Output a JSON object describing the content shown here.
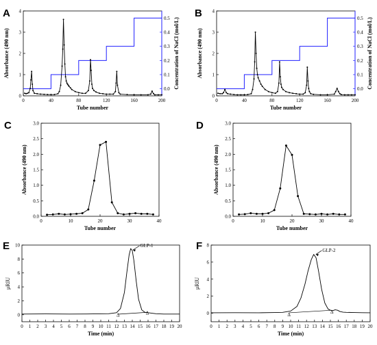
{
  "colors": {
    "series": "#000000",
    "nacl_step": "#1f1fff",
    "right_axis": "#1f1fff"
  },
  "chart_data": [
    {
      "panel": "A",
      "type": "line",
      "xlabel": "Tube number",
      "ylabel": "Absorbance (490 nm)",
      "y2label": "Concentration of NaCl (mol/L)",
      "xlim": [
        0,
        200
      ],
      "ylim": [
        0,
        4
      ],
      "y2lim": [
        -0.05,
        0.55
      ],
      "x_ticks": [
        0,
        40,
        80,
        120,
        160,
        200
      ],
      "y_ticks": [
        0,
        1,
        2,
        3,
        4
      ],
      "y2_ticks": [
        0.0,
        0.1,
        0.2,
        0.3,
        0.4,
        0.5
      ],
      "markers": true,
      "series": [
        {
          "x": [
            2,
            4,
            6,
            8,
            10,
            11,
            12,
            13,
            14,
            16,
            20,
            25,
            30,
            35,
            40,
            45,
            50,
            52,
            54,
            56,
            57,
            58,
            59,
            60,
            61,
            62,
            63,
            64,
            65,
            66,
            68,
            70,
            75,
            80,
            85,
            90,
            94,
            96,
            97,
            98,
            99,
            100,
            102,
            105,
            110,
            115,
            120,
            125,
            130,
            133,
            134,
            135,
            136,
            138,
            140,
            150,
            160,
            170,
            180,
            184,
            186,
            188,
            190,
            195,
            200
          ],
          "y": [
            0.12,
            0.1,
            0.12,
            0.15,
            0.35,
            0.75,
            1.15,
            0.55,
            0.25,
            0.12,
            0.1,
            0.08,
            0.07,
            0.06,
            0.06,
            0.06,
            0.1,
            0.2,
            0.5,
            1.4,
            2.2,
            3.6,
            2.4,
            1.5,
            0.9,
            0.7,
            0.6,
            0.55,
            0.5,
            0.45,
            0.38,
            0.3,
            0.2,
            0.15,
            0.12,
            0.12,
            0.25,
            0.7,
            1.7,
            1.2,
            0.55,
            0.35,
            0.25,
            0.18,
            0.12,
            0.1,
            0.08,
            0.08,
            0.08,
            0.2,
            0.6,
            1.15,
            0.5,
            0.15,
            0.08,
            0.06,
            0.05,
            0.05,
            0.05,
            0.08,
            0.22,
            0.1,
            0.05,
            0.05,
            0.05
          ]
        }
      ],
      "nacl_steps": {
        "x": [
          0,
          40,
          40,
          80,
          80,
          120,
          120,
          160,
          160,
          200
        ],
        "y": [
          0,
          0,
          0.1,
          0.1,
          0.2,
          0.2,
          0.3,
          0.3,
          0.5,
          0.5
        ]
      }
    },
    {
      "panel": "B",
      "type": "line",
      "xlabel": "Tube number",
      "ylabel": "Absorbance (490 nm)",
      "y2label": "Concentration of NaCl (mol/L)",
      "xlim": [
        0,
        200
      ],
      "ylim": [
        0,
        4
      ],
      "y2lim": [
        -0.05,
        0.55
      ],
      "x_ticks": [
        0,
        40,
        80,
        120,
        160,
        200
      ],
      "y_ticks": [
        0,
        1,
        2,
        3,
        4
      ],
      "y2_ticks": [
        0.0,
        0.1,
        0.2,
        0.3,
        0.4,
        0.5
      ],
      "markers": true,
      "series": [
        {
          "x": [
            2,
            5,
            8,
            10,
            12,
            14,
            16,
            20,
            25,
            30,
            35,
            40,
            45,
            50,
            52,
            54,
            55,
            56,
            57,
            58,
            59,
            60,
            62,
            64,
            66,
            70,
            75,
            80,
            85,
            88,
            90,
            91,
            92,
            93,
            94,
            96,
            100,
            105,
            110,
            115,
            120,
            125,
            128,
            130,
            131,
            132,
            133,
            134,
            136,
            140,
            150,
            160,
            170,
            172,
            174,
            176,
            178,
            180,
            185,
            190,
            195,
            200
          ],
          "y": [
            0.12,
            0.1,
            0.1,
            0.15,
            0.3,
            0.15,
            0.1,
            0.08,
            0.06,
            0.05,
            0.05,
            0.05,
            0.06,
            0.1,
            0.3,
            0.8,
            1.6,
            3.0,
            2.0,
            1.3,
            1.0,
            0.85,
            0.7,
            0.55,
            0.45,
            0.3,
            0.2,
            0.15,
            0.12,
            0.2,
            0.6,
            1.6,
            0.9,
            0.55,
            0.4,
            0.3,
            0.2,
            0.15,
            0.12,
            0.1,
            0.08,
            0.08,
            0.15,
            0.5,
            1.35,
            0.7,
            0.35,
            0.2,
            0.1,
            0.07,
            0.05,
            0.05,
            0.08,
            0.2,
            0.35,
            0.2,
            0.1,
            0.06,
            0.05,
            0.05,
            0.05,
            0.05
          ]
        }
      ],
      "nacl_steps": {
        "x": [
          0,
          40,
          40,
          80,
          80,
          120,
          120,
          160,
          160,
          200
        ],
        "y": [
          0,
          0,
          0.1,
          0.1,
          0.2,
          0.2,
          0.3,
          0.3,
          0.5,
          0.5
        ]
      }
    },
    {
      "panel": "C",
      "type": "line",
      "xlabel": "Tube number",
      "ylabel": "Absorbance (490 nm)",
      "xlim": [
        0,
        40
      ],
      "ylim": [
        0,
        3.0
      ],
      "x_ticks": [
        0,
        10,
        20,
        30,
        40
      ],
      "y_ticks": [
        0.0,
        0.5,
        1.0,
        1.5,
        2.0,
        2.5,
        3.0
      ],
      "y_tick_labels": [
        "0.0",
        "0.5",
        "1.0",
        "1.5",
        "2.0",
        "2.5",
        "3.0"
      ],
      "markers": true,
      "series": [
        {
          "x": [
            2,
            4,
            6,
            8,
            10,
            12,
            14,
            16,
            18,
            20,
            22,
            24,
            26,
            28,
            30,
            32,
            34,
            36,
            38
          ],
          "y": [
            0.05,
            0.06,
            0.08,
            0.06,
            0.07,
            0.08,
            0.1,
            0.22,
            1.15,
            2.3,
            2.4,
            0.45,
            0.1,
            0.06,
            0.08,
            0.1,
            0.08,
            0.08,
            0.06
          ]
        }
      ]
    },
    {
      "panel": "D",
      "type": "line",
      "xlabel": "Tube number",
      "ylabel": "Absorbance (490 nm)",
      "xlim": [
        0,
        40
      ],
      "ylim": [
        0,
        3.0
      ],
      "x_ticks": [
        0,
        10,
        20,
        30,
        40
      ],
      "y_ticks": [
        0.0,
        0.5,
        1.0,
        1.5,
        2.0,
        2.5,
        3.0
      ],
      "y_tick_labels": [
        "0.0",
        "0.5",
        "1.0",
        "1.5",
        "2.0",
        "2.5",
        "3.0"
      ],
      "markers": true,
      "series": [
        {
          "x": [
            2,
            4,
            6,
            8,
            10,
            12,
            14,
            16,
            18,
            20,
            22,
            24,
            26,
            28,
            30,
            32,
            34,
            36,
            38
          ],
          "y": [
            0.06,
            0.07,
            0.1,
            0.08,
            0.08,
            0.1,
            0.2,
            0.9,
            2.28,
            1.98,
            0.65,
            0.08,
            0.07,
            0.06,
            0.08,
            0.06,
            0.08,
            0.06,
            0.06
          ]
        }
      ]
    },
    {
      "panel": "E",
      "type": "line",
      "xlabel": "Time (min)",
      "ylabel": "μRIU",
      "xlim": [
        0,
        20
      ],
      "ylim": [
        -1,
        10
      ],
      "x_ticks": [
        0,
        1,
        2,
        3,
        4,
        5,
        6,
        7,
        8,
        9,
        10,
        11,
        12,
        13,
        14,
        15,
        16,
        17,
        18,
        19,
        20
      ],
      "y_ticks": [
        0,
        2,
        4,
        6,
        8,
        10
      ],
      "markers": false,
      "series": [
        {
          "x": [
            0,
            3,
            6,
            9,
            11,
            12,
            12.5,
            13,
            13.3,
            13.6,
            13.8,
            14.0,
            14.2,
            14.5,
            14.8,
            15.2,
            15.6,
            16,
            16.5,
            17,
            18,
            19,
            20
          ],
          "y": [
            0.1,
            0.12,
            0.1,
            0.12,
            0.15,
            0.3,
            0.9,
            3.2,
            6.0,
            8.6,
            9.5,
            9.2,
            7.8,
            4.8,
            2.2,
            0.7,
            0.35,
            0.3,
            0.22,
            0.15,
            0.1,
            0.1,
            0.1
          ]
        }
      ],
      "baseline": {
        "x": [
          12.2,
          15.9
        ],
        "y": [
          0.08,
          0.35
        ]
      },
      "annotations": [
        {
          "text": "GLP-1",
          "x": 15.0,
          "y": 9.7,
          "arrow_to": [
            13.9,
            9.3
          ]
        },
        {
          "text": "Δ",
          "x": 12.2,
          "y": -0.25
        },
        {
          "text": "Δ",
          "x": 15.9,
          "y": 0.05
        }
      ]
    },
    {
      "panel": "F",
      "type": "line",
      "xlabel": "Time (min)",
      "ylabel": "μRIU",
      "xlim": [
        0,
        20
      ],
      "ylim": [
        -1,
        8
      ],
      "x_ticks": [
        0,
        1,
        2,
        3,
        4,
        5,
        6,
        7,
        8,
        9,
        10,
        11,
        12,
        13,
        14,
        15,
        16,
        17,
        18,
        19,
        20
      ],
      "y_ticks": [
        0,
        2,
        4,
        6,
        8
      ],
      "markers": false,
      "series": [
        {
          "x": [
            0,
            3,
            6,
            8,
            9,
            10,
            10.8,
            11.3,
            11.8,
            12.2,
            12.6,
            12.9,
            13.2,
            13.5,
            13.9,
            14.3,
            14.7,
            15.0,
            15.3,
            15.6,
            15.9,
            16.2,
            16.6,
            17,
            18,
            19,
            20
          ],
          "y": [
            0.05,
            0.06,
            0.05,
            0.08,
            0.1,
            0.25,
            0.8,
            1.8,
            3.4,
            5.0,
            6.3,
            6.9,
            6.5,
            5.0,
            2.8,
            1.2,
            0.5,
            0.35,
            0.3,
            0.4,
            0.35,
            0.2,
            0.12,
            0.1,
            0.08,
            0.06,
            0.05
          ]
        }
      ],
      "baseline": {
        "x": [
          9.8,
          15.2
        ],
        "y": [
          0.05,
          0.35
        ]
      },
      "annotations": [
        {
          "text": "GLP-2",
          "x": 14.0,
          "y": 7.2,
          "arrow_to": [
            13.0,
            6.9
          ]
        },
        {
          "text": "Δ",
          "x": 9.8,
          "y": -0.35
        },
        {
          "text": "Δ",
          "x": 15.2,
          "y": -0.05
        }
      ]
    }
  ]
}
